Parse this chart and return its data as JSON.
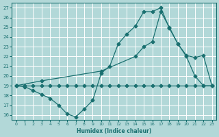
{
  "xlabel": "Humidex (Indice chaleur)",
  "background_color": "#b2d8d8",
  "grid_color": "#ffffff",
  "line_color": "#1a7070",
  "xlim": [
    -0.5,
    23.5
  ],
  "ylim": [
    15.5,
    27.5
  ],
  "xticks": [
    0,
    1,
    2,
    3,
    4,
    5,
    6,
    7,
    8,
    9,
    10,
    11,
    12,
    13,
    14,
    15,
    16,
    17,
    18,
    19,
    20,
    21,
    22,
    23
  ],
  "yticks": [
    16,
    17,
    18,
    19,
    20,
    21,
    22,
    23,
    24,
    25,
    26,
    27
  ],
  "line1_x": [
    0,
    1,
    2,
    3,
    4,
    5,
    6,
    7,
    8,
    9,
    10,
    11,
    12,
    13,
    14,
    15,
    16,
    17,
    18,
    19,
    20,
    21,
    22,
    23
  ],
  "line1_y": [
    19.0,
    19.0,
    19.0,
    19.0,
    19.0,
    19.0,
    19.0,
    19.0,
    19.0,
    19.0,
    19.0,
    19.0,
    19.0,
    19.0,
    19.0,
    19.0,
    19.0,
    19.0,
    19.0,
    19.0,
    19.0,
    19.0,
    19.0,
    19.0
  ],
  "line2_x": [
    0,
    1,
    2,
    3,
    4,
    5,
    6,
    7,
    8,
    9,
    10,
    11,
    12,
    13,
    14,
    15,
    16,
    17,
    18,
    19,
    20,
    21,
    22,
    23
  ],
  "line2_y": [
    19.0,
    18.9,
    18.5,
    18.1,
    17.7,
    17.0,
    16.1,
    15.8,
    16.6,
    17.5,
    20.3,
    21.0,
    23.3,
    24.3,
    25.1,
    26.6,
    26.6,
    27.0,
    24.9,
    23.3,
    22.0,
    20.0,
    19.0,
    19.0
  ],
  "line3_x": [
    0,
    3,
    10,
    14,
    15,
    16,
    17,
    18,
    19,
    20,
    21,
    22,
    23
  ],
  "line3_y": [
    19.0,
    19.5,
    20.5,
    22.0,
    23.0,
    23.5,
    26.6,
    25.0,
    23.3,
    22.1,
    21.9,
    22.1,
    19.0
  ]
}
